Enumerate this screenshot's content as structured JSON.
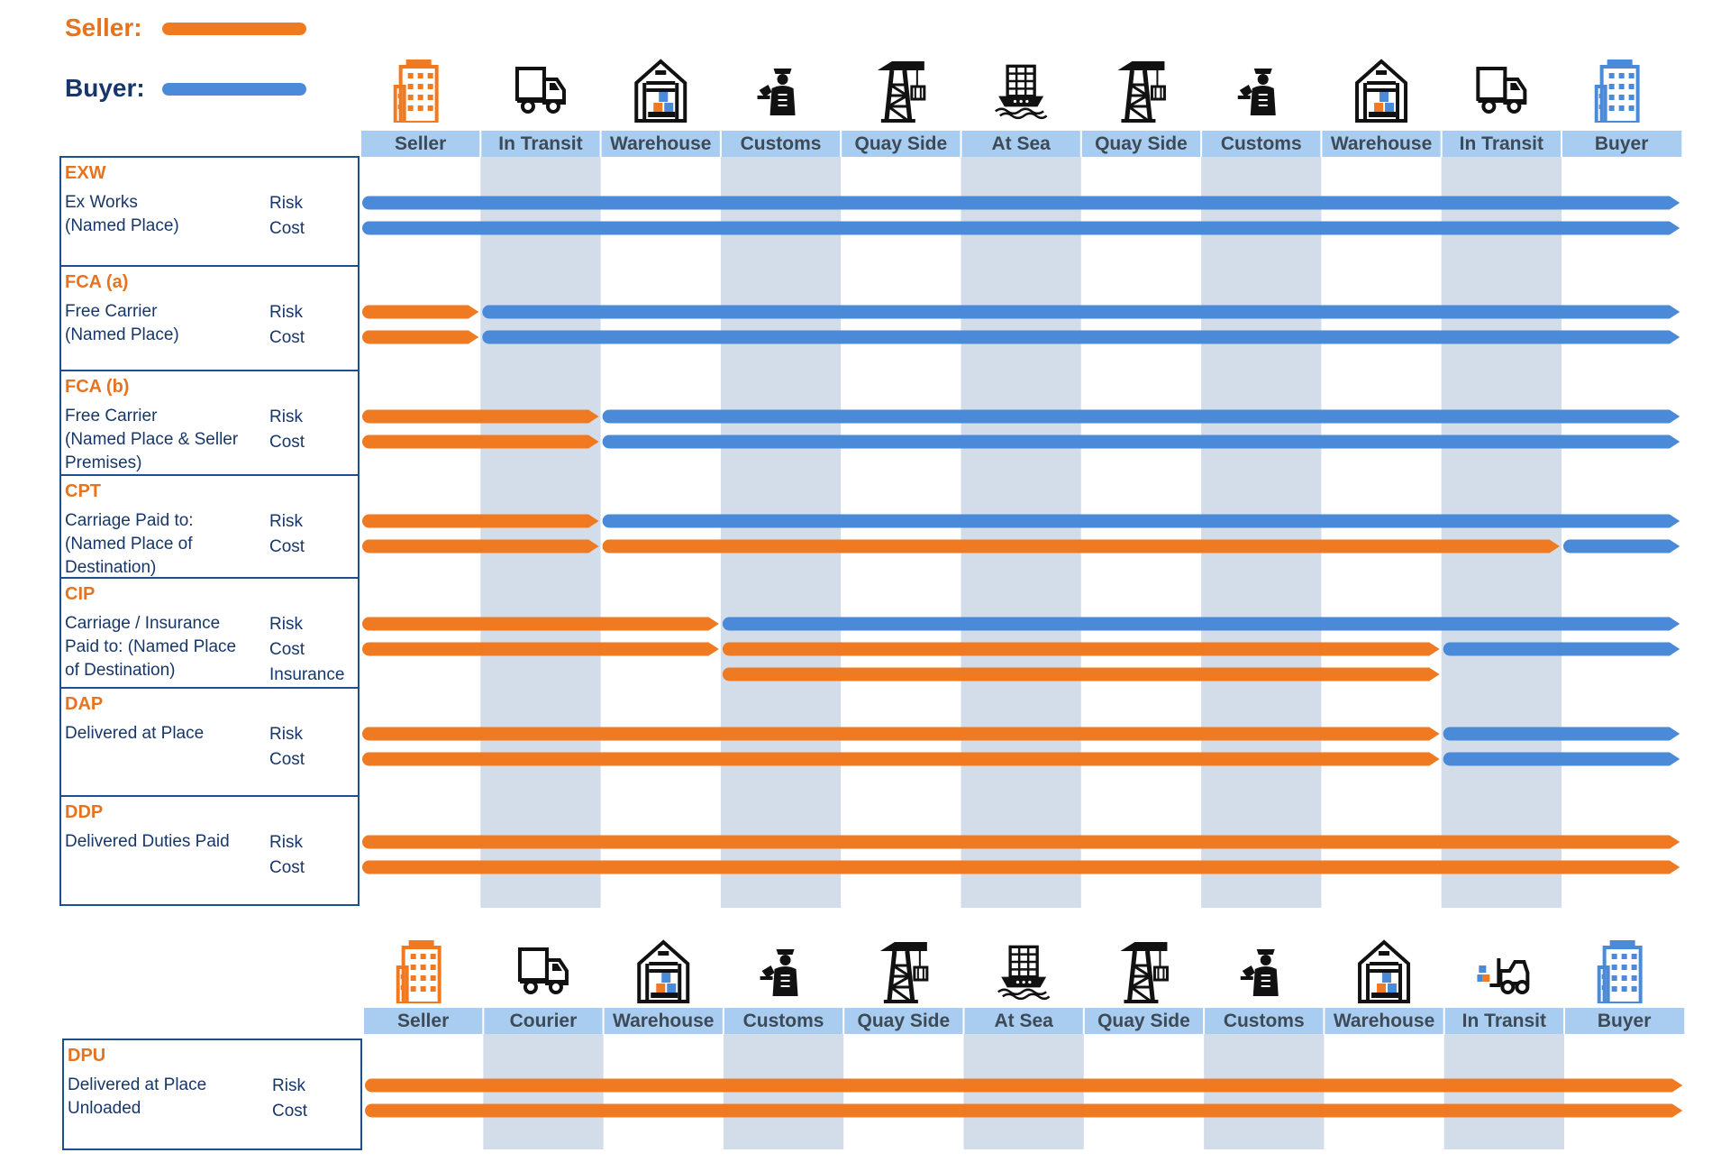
{
  "legend": {
    "seller_label": "Seller:",
    "buyer_label": "Buyer:",
    "seller_color": "#f07a22",
    "buyer_color": "#4a8ad8"
  },
  "colors": {
    "seller": "#f07a22",
    "buyer": "#4a8ad8",
    "stripe": "#d3dde9",
    "header_band": "#a9cdf0",
    "table_border": "#1f4e8c"
  },
  "top_columns": [
    {
      "label": "Seller",
      "icon": "office-building-icon",
      "icon_color": "#f07a22"
    },
    {
      "label": "In Transit",
      "icon": "delivery-truck-icon",
      "icon_color": "#111111"
    },
    {
      "label": "Warehouse",
      "icon": "warehouse-icon",
      "icon_color": "#111111"
    },
    {
      "label": "Customs",
      "icon": "customs-officer-icon",
      "icon_color": "#111111"
    },
    {
      "label": "Quay Side",
      "icon": "quay-crane-icon",
      "icon_color": "#111111"
    },
    {
      "label": "At Sea",
      "icon": "container-ship-icon",
      "icon_color": "#111111"
    },
    {
      "label": "Quay Side",
      "icon": "quay-crane-icon",
      "icon_color": "#111111"
    },
    {
      "label": "Customs",
      "icon": "customs-officer-icon",
      "icon_color": "#111111"
    },
    {
      "label": "Warehouse",
      "icon": "warehouse-icon",
      "icon_color": "#111111"
    },
    {
      "label": "In Transit",
      "icon": "delivery-truck-icon",
      "icon_color": "#111111"
    },
    {
      "label": "Buyer",
      "icon": "office-building-icon",
      "icon_color": "#4a8ad8"
    }
  ],
  "bottom_columns": [
    {
      "label": "Seller",
      "icon": "office-building-icon",
      "icon_color": "#f07a22"
    },
    {
      "label": "Courier",
      "icon": "delivery-truck-icon",
      "icon_color": "#111111"
    },
    {
      "label": "Warehouse",
      "icon": "warehouse-icon",
      "icon_color": "#111111"
    },
    {
      "label": "Customs",
      "icon": "customs-officer-icon",
      "icon_color": "#111111"
    },
    {
      "label": "Quay Side",
      "icon": "quay-crane-icon",
      "icon_color": "#111111"
    },
    {
      "label": "At Sea",
      "icon": "container-ship-icon",
      "icon_color": "#111111"
    },
    {
      "label": "Quay Side",
      "icon": "quay-crane-icon",
      "icon_color": "#111111"
    },
    {
      "label": "Customs",
      "icon": "customs-officer-icon",
      "icon_color": "#111111"
    },
    {
      "label": "Warehouse",
      "icon": "warehouse-icon",
      "icon_color": "#111111"
    },
    {
      "label": "In Transit",
      "icon": "forklift-truck-icon",
      "icon_color": "#111111"
    },
    {
      "label": "Buyer",
      "icon": "office-building-icon",
      "icon_color": "#4a8ad8"
    }
  ],
  "top_terms": [
    {
      "code": "EXW",
      "desc": [
        "Ex Works",
        "(Named Place)"
      ],
      "rows": [
        {
          "kind": "Risk",
          "segments": [
            {
              "party": "buyer",
              "from": 0,
              "to": 11
            }
          ]
        },
        {
          "kind": "Cost",
          "segments": [
            {
              "party": "buyer",
              "from": 0,
              "to": 11
            }
          ]
        }
      ]
    },
    {
      "code": "FCA (a)",
      "desc": [
        "Free Carrier",
        "(Named Place)"
      ],
      "rows": [
        {
          "kind": "Risk",
          "segments": [
            {
              "party": "seller",
              "from": 0,
              "to": 1
            },
            {
              "party": "buyer",
              "from": 1,
              "to": 11
            }
          ]
        },
        {
          "kind": "Cost",
          "segments": [
            {
              "party": "seller",
              "from": 0,
              "to": 1
            },
            {
              "party": "buyer",
              "from": 1,
              "to": 11
            }
          ]
        }
      ]
    },
    {
      "code": "FCA (b)",
      "desc": [
        "Free Carrier",
        "(Named Place & Seller",
        "Premises)"
      ],
      "rows": [
        {
          "kind": "Risk",
          "segments": [
            {
              "party": "seller",
              "from": 0,
              "to": 2
            },
            {
              "party": "buyer",
              "from": 2,
              "to": 11
            }
          ]
        },
        {
          "kind": "Cost",
          "segments": [
            {
              "party": "seller",
              "from": 0,
              "to": 2
            },
            {
              "party": "buyer",
              "from": 2,
              "to": 11
            }
          ]
        }
      ]
    },
    {
      "code": "CPT",
      "desc": [
        "Carriage Paid to:",
        "(Named Place of",
        "Destination)"
      ],
      "rows": [
        {
          "kind": "Risk",
          "segments": [
            {
              "party": "seller",
              "from": 0,
              "to": 2
            },
            {
              "party": "buyer",
              "from": 2,
              "to": 11
            }
          ]
        },
        {
          "kind": "Cost",
          "segments": [
            {
              "party": "seller",
              "from": 0,
              "to": 2
            },
            {
              "party": "seller",
              "from": 2,
              "to": 10
            },
            {
              "party": "buyer",
              "from": 10,
              "to": 11
            }
          ]
        }
      ]
    },
    {
      "code": "CIP",
      "desc": [
        "Carriage / Insurance",
        "Paid to: (Named Place",
        "of Destination)"
      ],
      "rows": [
        {
          "kind": "Risk",
          "segments": [
            {
              "party": "seller",
              "from": 0,
              "to": 3
            },
            {
              "party": "buyer",
              "from": 3,
              "to": 11
            }
          ]
        },
        {
          "kind": "Cost",
          "segments": [
            {
              "party": "seller",
              "from": 0,
              "to": 3
            },
            {
              "party": "seller",
              "from": 3,
              "to": 9
            },
            {
              "party": "buyer",
              "from": 9,
              "to": 11
            }
          ]
        },
        {
          "kind": "Insurance",
          "segments": [
            {
              "party": "seller",
              "from": 3,
              "to": 9
            }
          ]
        }
      ]
    },
    {
      "code": "DAP",
      "desc": [
        "Delivered at Place"
      ],
      "rows": [
        {
          "kind": "Risk",
          "segments": [
            {
              "party": "seller",
              "from": 0,
              "to": 9
            },
            {
              "party": "buyer",
              "from": 9,
              "to": 11
            }
          ]
        },
        {
          "kind": "Cost",
          "segments": [
            {
              "party": "seller",
              "from": 0,
              "to": 9
            },
            {
              "party": "buyer",
              "from": 9,
              "to": 11
            }
          ]
        }
      ]
    },
    {
      "code": "DDP",
      "desc": [
        "Delivered Duties Paid"
      ],
      "rows": [
        {
          "kind": "Risk",
          "segments": [
            {
              "party": "seller",
              "from": 0,
              "to": 11
            }
          ]
        },
        {
          "kind": "Cost",
          "segments": [
            {
              "party": "seller",
              "from": 0,
              "to": 11
            }
          ]
        }
      ]
    }
  ],
  "bottom_terms": [
    {
      "code": "DPU",
      "desc": [
        "Delivered at Place",
        "Unloaded"
      ],
      "rows": [
        {
          "kind": "Risk",
          "segments": [
            {
              "party": "seller",
              "from": 0,
              "to": 11
            }
          ]
        },
        {
          "kind": "Cost",
          "segments": [
            {
              "party": "seller",
              "from": 0,
              "to": 11
            }
          ]
        }
      ]
    }
  ]
}
